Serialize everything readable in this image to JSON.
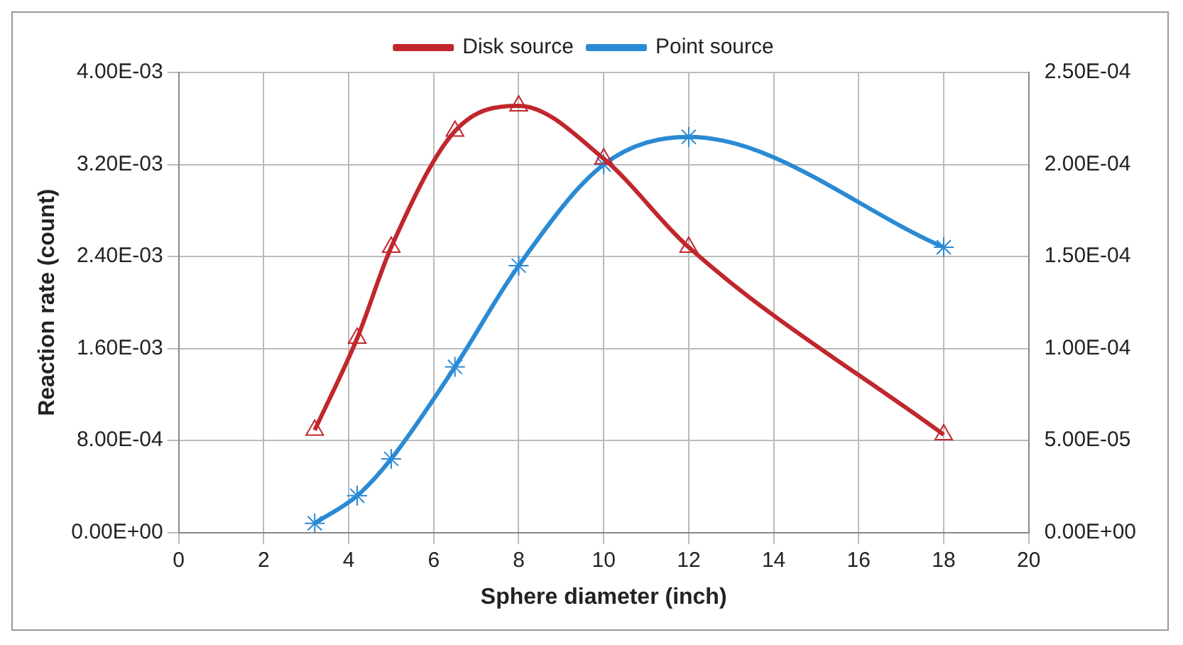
{
  "chart_data": {
    "type": "line",
    "xlabel": "Sphere diameter (inch)",
    "ylabel": "Reaction rate (count)",
    "legend": "top",
    "grid": true,
    "line_style": "solid",
    "xlim": [
      0,
      20
    ],
    "xticks": [
      0,
      2,
      4,
      6,
      8,
      10,
      12,
      14,
      16,
      18,
      20
    ],
    "ylim": [
      0,
      0.004
    ],
    "yticks": [
      {
        "value": 0,
        "label": "0.00E+00"
      },
      {
        "value": 0.0008,
        "label": "8.00E-04"
      },
      {
        "value": 0.0016,
        "label": "1.60E-03"
      },
      {
        "value": 0.0024,
        "label": "2.40E-03"
      },
      {
        "value": 0.0032,
        "label": "3.20E-03"
      },
      {
        "value": 0.004,
        "label": "4.00E-03"
      }
    ],
    "y2lim": [
      0,
      0.00025
    ],
    "y2ticks": [
      {
        "value": 0,
        "label": "0.00E+00"
      },
      {
        "value": 5e-05,
        "label": "5.00E-05"
      },
      {
        "value": 0.0001,
        "label": "1.00E-04"
      },
      {
        "value": 0.00015,
        "label": "1.50E-04"
      },
      {
        "value": 0.0002,
        "label": "2.00E-04"
      },
      {
        "value": 0.00025,
        "label": "2.50E-04"
      }
    ],
    "x": [
      3.2,
      4.2,
      5,
      6.5,
      8,
      10,
      12,
      18
    ],
    "series": [
      {
        "name": "Disk source",
        "color": "#c0272d",
        "marker": "triangle",
        "values": [
          0.00089,
          0.00169,
          0.00248,
          0.00349,
          0.00371,
          0.00325,
          0.00248,
          0.00085
        ]
      },
      {
        "name": "Point source",
        "color": "#2a8ad4",
        "marker": "cross",
        "axis": "y2",
        "values": [
          5e-06,
          2e-05,
          4e-05,
          9e-05,
          0.000145,
          0.0002,
          0.000215,
          0.000155
        ]
      }
    ]
  }
}
